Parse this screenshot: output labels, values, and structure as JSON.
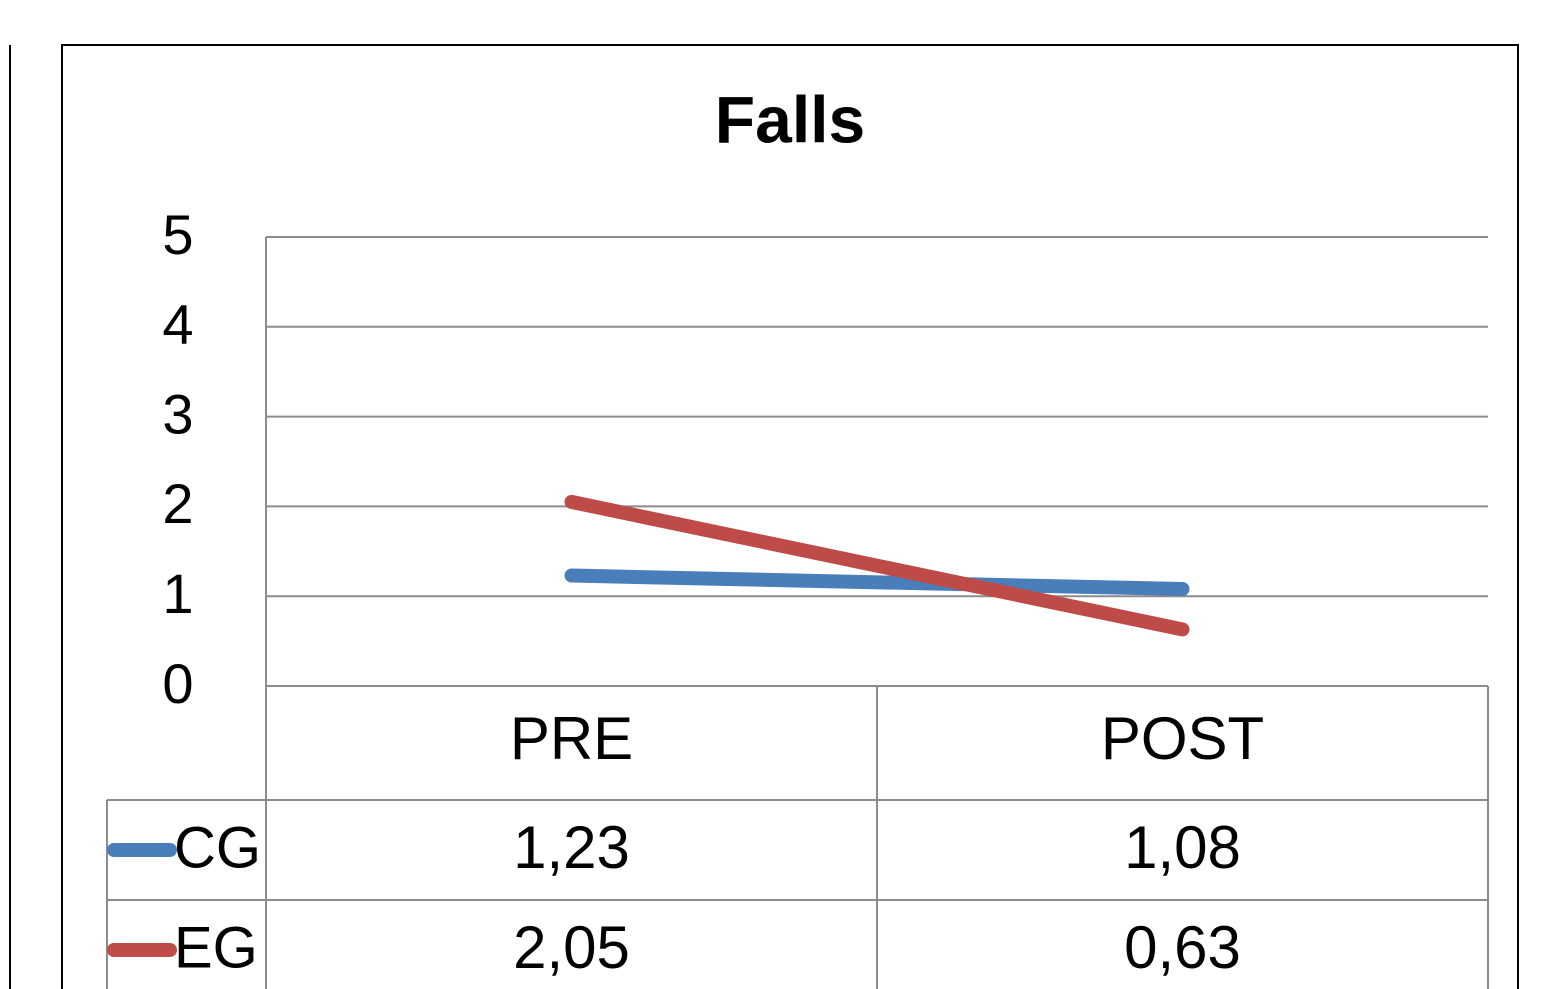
{
  "chart_data": {
    "type": "line",
    "title": "Falls",
    "categories": [
      "PRE",
      "POST"
    ],
    "series": [
      {
        "name": "CG",
        "color": "#4a7ebb",
        "values": [
          1.23,
          1.08
        ],
        "value_labels": [
          "1,23",
          "1,08"
        ]
      },
      {
        "name": "EG",
        "color": "#be4b48",
        "values": [
          2.05,
          0.63
        ],
        "value_labels": [
          "2,05",
          "0,63"
        ]
      }
    ],
    "ylim": [
      0,
      5
    ],
    "yticks": [
      0,
      1,
      2,
      3,
      4,
      5
    ],
    "grid": true,
    "legend": "table"
  }
}
